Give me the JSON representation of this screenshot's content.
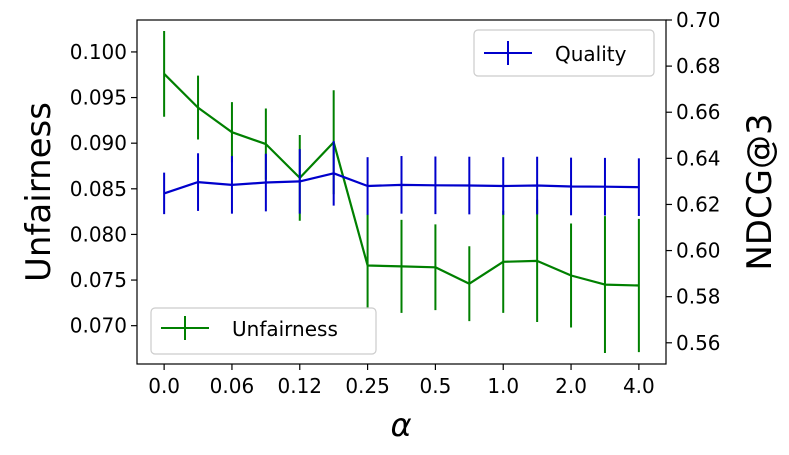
{
  "chart_data": {
    "type": "line",
    "x_label": "α",
    "x_ticks": [
      "0.0",
      "0.06",
      "0.12",
      "0.25",
      "0.5",
      "1.0",
      "2.0",
      "4.0"
    ],
    "x_tick_positions": [
      0,
      2,
      4,
      6,
      8,
      10,
      12,
      14
    ],
    "x_range": [
      -0.8,
      14.8
    ],
    "left_axis": {
      "label": "Unfairness",
      "range": [
        0.0658,
        0.1035
      ],
      "ticks": [
        "0.070",
        "0.075",
        "0.080",
        "0.085",
        "0.090",
        "0.095",
        "0.100"
      ],
      "tick_values": [
        0.07,
        0.075,
        0.08,
        0.085,
        0.09,
        0.095,
        0.1
      ]
    },
    "right_axis": {
      "label": "NDCG@3",
      "range": [
        0.5508,
        0.7
      ],
      "ticks": [
        "0.56",
        "0.58",
        "0.60",
        "0.62",
        "0.64",
        "0.66",
        "0.68",
        "0.70"
      ],
      "tick_values": [
        0.56,
        0.58,
        0.6,
        0.62,
        0.64,
        0.66,
        0.68,
        0.7
      ]
    },
    "series": [
      {
        "name": "Unfairness",
        "axis": "left",
        "color": "#008000",
        "x": [
          0,
          1,
          2,
          3,
          4,
          5,
          6,
          7,
          8,
          9,
          10,
          11,
          12,
          13,
          14
        ],
        "values": [
          0.0976,
          0.0939,
          0.0912,
          0.0899,
          0.0862,
          0.0901,
          0.0766,
          0.0765,
          0.0764,
          0.0746,
          0.077,
          0.0771,
          0.0755,
          0.0745,
          0.0744
        ],
        "errors": [
          0.0047,
          0.0035,
          0.0033,
          0.0039,
          0.0047,
          0.0057,
          0.0056,
          0.0051,
          0.0047,
          0.0041,
          0.0056,
          0.0067,
          0.0057,
          0.0075,
          0.0073
        ]
      },
      {
        "name": "Quality",
        "axis": "right",
        "color": "#0000cc",
        "x": [
          0,
          1,
          2,
          3,
          4,
          5,
          6,
          7,
          8,
          9,
          10,
          11,
          12,
          13,
          14
        ],
        "values": [
          0.6248,
          0.6297,
          0.6285,
          0.6295,
          0.63,
          0.6335,
          0.628,
          0.6285,
          0.6283,
          0.6282,
          0.628,
          0.6282,
          0.6278,
          0.6277,
          0.6275
        ],
        "errors": [
          0.009,
          0.0125,
          0.0125,
          0.0125,
          0.014,
          0.014,
          0.0125,
          0.0125,
          0.0125,
          0.0125,
          0.0125,
          0.0125,
          0.0125,
          0.0125,
          0.0125
        ]
      }
    ],
    "legends": [
      {
        "label": "Quality",
        "color": "#0000cc",
        "placement": "upper right"
      },
      {
        "label": "Unfairness",
        "color": "#008000",
        "placement": "lower left"
      }
    ],
    "grid": false
  }
}
